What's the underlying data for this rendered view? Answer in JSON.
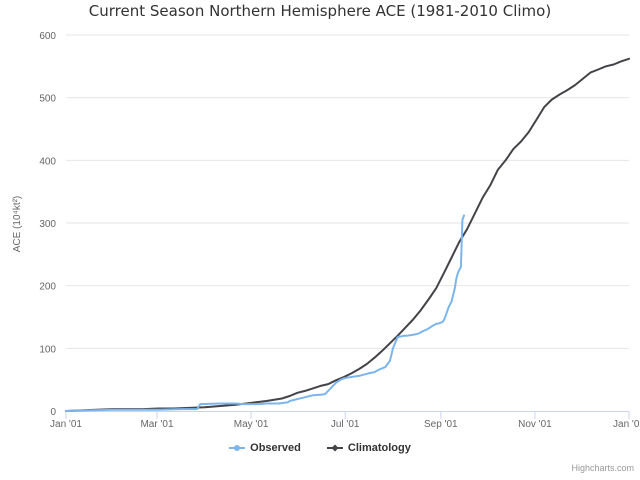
{
  "chart_data": {
    "type": "line",
    "title": "Current Season Northern Hemisphere ACE (1981-2010 Climo)",
    "ylabel": "ACE (10⁴kt²)",
    "xlabel": "",
    "ylim": [
      0,
      600
    ],
    "y_ticks": [
      "0",
      "100",
      "200",
      "300",
      "400",
      "500",
      "600"
    ],
    "x_ticks": [
      {
        "label": "Jan '01",
        "day": 0
      },
      {
        "label": "Mar '01",
        "day": 59
      },
      {
        "label": "May '01",
        "day": 120
      },
      {
        "label": "Jul '01",
        "day": 181
      },
      {
        "label": "Sep '01",
        "day": 243
      },
      {
        "label": "Nov '01",
        "day": 304
      },
      {
        "label": "Jan '02",
        "day": 365
      }
    ],
    "grid": "horizontal",
    "legend_position": "bottom-center",
    "series": [
      {
        "name": "Observed",
        "color": "#7cb5ec",
        "x_day": [
          0,
          15,
          30,
          45,
          60,
          75,
          85,
          87,
          100,
          110,
          115,
          125,
          130,
          138,
          144,
          145,
          155,
          158,
          160,
          165,
          168,
          175,
          178,
          180,
          184,
          187,
          190,
          193,
          196,
          200,
          203,
          207,
          210,
          212,
          215,
          219,
          221,
          223,
          226,
          229,
          231,
          234,
          237,
          240,
          242,
          244,
          245,
          246,
          248,
          250,
          252,
          253,
          254,
          255,
          256,
          257,
          258
        ],
        "values": [
          0,
          1,
          2,
          2,
          2,
          3,
          3,
          11,
          12,
          12,
          11,
          11,
          12,
          12,
          14,
          16,
          22,
          24,
          25,
          26,
          27,
          45,
          50,
          52,
          54,
          55,
          56,
          58,
          60,
          62,
          66,
          70,
          80,
          100,
          118,
          120,
          120,
          121,
          122,
          124,
          127,
          130,
          135,
          139,
          140,
          142,
          145,
          151,
          165,
          175,
          195,
          210,
          220,
          225,
          230,
          305,
          312
        ]
      },
      {
        "name": "Climatology",
        "color": "#434348",
        "x_day": [
          0,
          10,
          20,
          30,
          40,
          50,
          60,
          70,
          80,
          90,
          100,
          110,
          120,
          130,
          140,
          145,
          150,
          155,
          160,
          165,
          170,
          175,
          180,
          185,
          190,
          195,
          200,
          205,
          210,
          215,
          220,
          225,
          230,
          235,
          240,
          245,
          250,
          255,
          260,
          265,
          270,
          275,
          280,
          285,
          290,
          295,
          300,
          305,
          310,
          315,
          320,
          325,
          330,
          335,
          340,
          345,
          350,
          355,
          360,
          365
        ],
        "values": [
          0,
          1,
          2,
          3,
          3,
          3,
          4,
          4,
          5,
          6,
          8,
          10,
          13,
          16,
          20,
          24,
          29,
          32,
          36,
          40,
          43,
          49,
          54,
          60,
          67,
          75,
          85,
          96,
          108,
          120,
          133,
          146,
          161,
          178,
          196,
          220,
          245,
          270,
          290,
          315,
          340,
          360,
          385,
          400,
          418,
          430,
          445,
          465,
          485,
          497,
          505,
          512,
          520,
          530,
          540,
          545,
          550,
          553,
          558,
          562
        ]
      }
    ]
  },
  "credits": "Highcharts.com"
}
